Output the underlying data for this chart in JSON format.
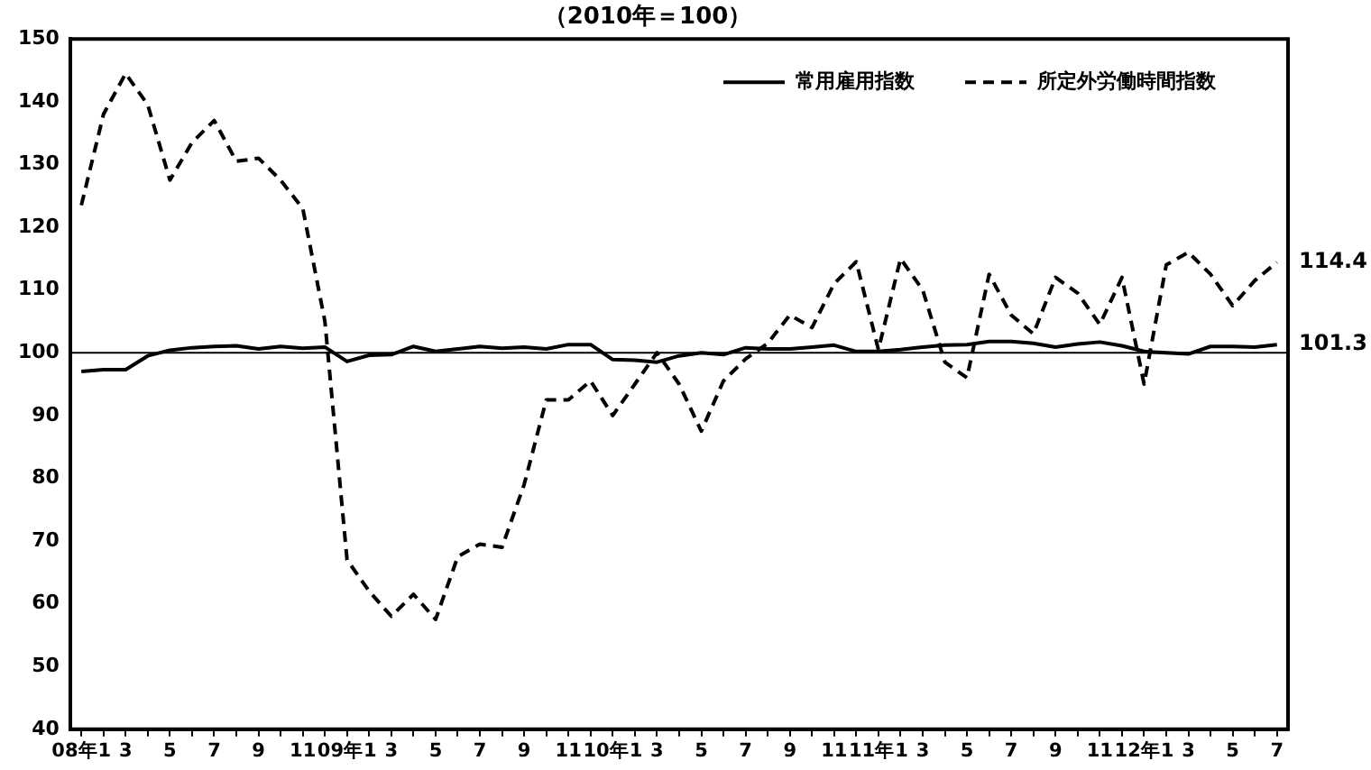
{
  "chart_data": {
    "type": "line",
    "title": "（2010年＝100）",
    "categories": [
      "08年1",
      null,
      "3",
      null,
      "5",
      null,
      "7",
      null,
      "9",
      null,
      "11",
      null,
      "09年1",
      null,
      "3",
      null,
      "5",
      null,
      "7",
      null,
      "9",
      null,
      "11",
      null,
      "10年1",
      null,
      "3",
      null,
      "5",
      null,
      "7",
      null,
      "9",
      null,
      "11",
      null,
      "11年1",
      null,
      "3",
      null,
      "5",
      null,
      "7",
      null,
      "9",
      null,
      "11",
      null,
      "12年1",
      null,
      "3",
      null,
      "5",
      null,
      "7"
    ],
    "series": [
      {
        "name": "常用雇用指数",
        "color": "#000000",
        "line_style": "solid",
        "values": [
          97,
          97.3,
          97.3,
          99.5,
          100.4,
          100.8,
          101,
          101.1,
          100.6,
          101,
          100.7,
          100.9,
          98.6,
          99.6,
          99.7,
          101,
          100.2,
          100.6,
          101,
          100.7,
          100.9,
          100.6,
          101.3,
          101.3,
          98.9,
          98.8,
          98.5,
          99.5,
          100,
          99.7,
          100.8,
          100.6,
          100.6,
          100.9,
          101.2,
          100.2,
          100.2,
          100.5,
          100.9,
          101.2,
          101.3,
          101.8,
          101.8,
          101.5,
          100.9,
          101.4,
          101.7,
          101.1,
          100.2,
          100,
          99.8,
          101,
          101,
          100.9,
          101.3
        ],
        "value_labels": [
          null,
          null,
          null,
          null,
          null,
          null,
          null,
          null,
          null,
          null,
          null,
          null,
          null,
          null,
          null,
          null,
          null,
          null,
          null,
          null,
          null,
          null,
          null,
          null,
          null,
          null,
          null,
          null,
          null,
          null,
          null,
          null,
          null,
          null,
          null,
          null,
          null,
          null,
          null,
          null,
          null,
          null,
          null,
          null,
          null,
          null,
          null,
          null,
          null,
          null,
          null,
          null,
          null,
          null,
          "101.3"
        ]
      },
      {
        "name": "所定外労働時間指数",
        "color": "#000000",
        "line_style": "dashed",
        "values": [
          123.5,
          138,
          144.5,
          139.5,
          127.5,
          133.5,
          137,
          130.5,
          131,
          127.5,
          123,
          105,
          67,
          62,
          58,
          61.5,
          57.5,
          67.5,
          69.5,
          69,
          79,
          92.5,
          92.5,
          95.5,
          90,
          95,
          100,
          95,
          87.5,
          95.5,
          99,
          101.5,
          106,
          104,
          111,
          114.5,
          100.5,
          115,
          110,
          98.5,
          96,
          112.5,
          106,
          103,
          112,
          109.5,
          104.5,
          112,
          95,
          114,
          116,
          112.5,
          107.5,
          111.5,
          114.4
        ],
        "value_labels": [
          null,
          null,
          null,
          null,
          null,
          null,
          null,
          null,
          null,
          null,
          null,
          null,
          null,
          null,
          null,
          null,
          null,
          null,
          null,
          null,
          null,
          null,
          null,
          null,
          null,
          null,
          null,
          null,
          null,
          null,
          null,
          null,
          null,
          null,
          null,
          null,
          null,
          null,
          null,
          null,
          null,
          null,
          null,
          null,
          null,
          null,
          null,
          null,
          null,
          null,
          null,
          null,
          null,
          null,
          "114.4"
        ]
      }
    ],
    "ylim": [
      40,
      150
    ],
    "yticks": [
      40,
      50,
      60,
      70,
      80,
      90,
      100,
      110,
      120,
      130,
      140,
      150
    ],
    "ref_lines": [
      {
        "axis": "y",
        "value": 100,
        "color": "#000000"
      }
    ],
    "grid": false,
    "legend": "top right",
    "marker": "none"
  }
}
